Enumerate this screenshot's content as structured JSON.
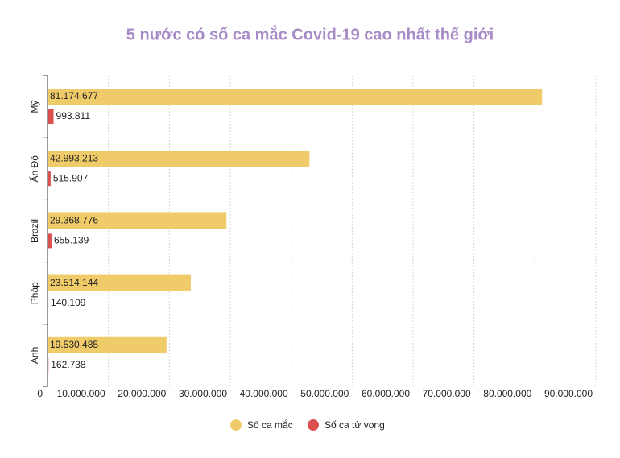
{
  "chart_data": {
    "type": "bar",
    "orientation": "horizontal",
    "title": "5 nước có số ca mắc Covid-19 cao nhất thế giới",
    "categories": [
      "Mỹ",
      "Ấn Độ",
      "Brazil",
      "Pháp",
      "Anh"
    ],
    "series": [
      {
        "name": "Số ca mắc",
        "color": "#f0cb69",
        "values": [
          81174677,
          42993213,
          29368776,
          23514144,
          19530485
        ],
        "value_labels": [
          "81.174.677",
          "42.993.213",
          "29.368.776",
          "23.514.144",
          "19.530.485"
        ]
      },
      {
        "name": "Số ca tử vong",
        "color": "#d9504f",
        "values": [
          993811,
          515907,
          655139,
          140109,
          162738
        ],
        "value_labels": [
          "993.811",
          "515.907",
          "655.139",
          "140.109",
          "162.738"
        ]
      }
    ],
    "xlim": [
      0,
      90000000
    ],
    "xticks": [
      0,
      {
        "value": 10000000,
        "label": "10.000.000"
      },
      {
        "value": 20000000,
        "label": "20.000.000"
      },
      {
        "value": 30000000,
        "label": "30.000.000"
      },
      {
        "value": 40000000,
        "label": "40.000.000"
      },
      {
        "value": 50000000,
        "label": "50.000.000"
      },
      {
        "value": 60000000,
        "label": "60.000.000"
      },
      {
        "value": 70000000,
        "label": "70.000.000"
      },
      {
        "value": 80000000,
        "label": "80.000.000"
      },
      {
        "value": 90000000,
        "label": "90.000.000"
      }
    ],
    "grid": true,
    "legend": "bottom"
  }
}
